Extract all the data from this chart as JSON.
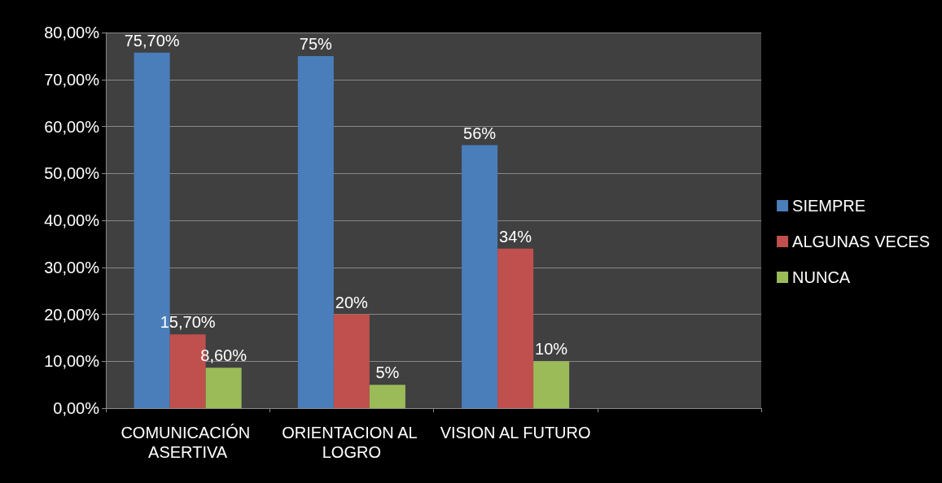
{
  "chart_data": {
    "type": "bar",
    "categories": [
      "COMUNICACIÓN ASERTIVA",
      "ORIENTACION AL LOGRO",
      "VISION AL FUTURO",
      null
    ],
    "series": [
      {
        "name": "SIEMPRE",
        "color": "#4a7ebb",
        "values": [
          75.7,
          75,
          56,
          null
        ],
        "value_labels": [
          "75,70%",
          "75%",
          "56%",
          null
        ]
      },
      {
        "name": "ALGUNAS VECES",
        "color": "#c0504d",
        "values": [
          15.7,
          20,
          34,
          null
        ],
        "value_labels": [
          "15,70%",
          "20%",
          "34%",
          null
        ]
      },
      {
        "name": "NUNCA",
        "color": "#9bbb59",
        "values": [
          8.6,
          5,
          10,
          null
        ],
        "value_labels": [
          "8,60%",
          "5%",
          "10%",
          null
        ]
      }
    ],
    "ylim": [
      0,
      80
    ],
    "yticks": [
      {
        "value": 0,
        "label": "0,00%"
      },
      {
        "value": 10,
        "label": "10,00%"
      },
      {
        "value": 20,
        "label": "20,00%"
      },
      {
        "value": 30,
        "label": "30,00%"
      },
      {
        "value": 40,
        "label": "40,00%"
      },
      {
        "value": 50,
        "label": "50,00%"
      },
      {
        "value": 60,
        "label": "60,00%"
      },
      {
        "value": 70,
        "label": "70,00%"
      },
      {
        "value": 80,
        "label": "80,00%"
      }
    ],
    "grid": "y",
    "legend": "right"
  }
}
